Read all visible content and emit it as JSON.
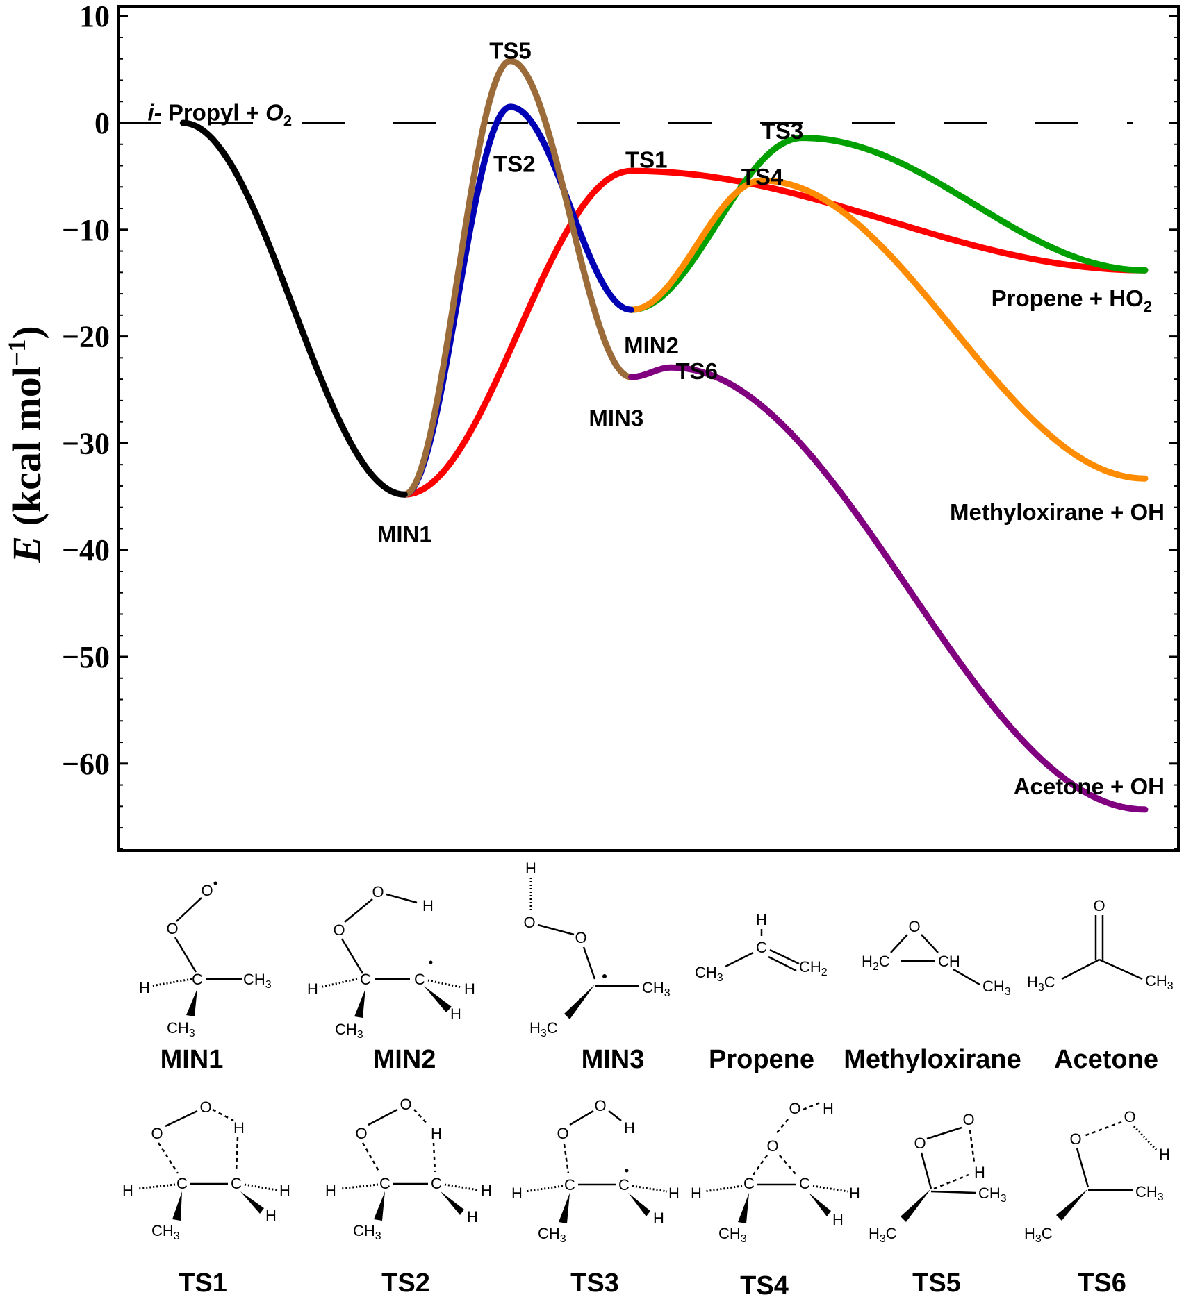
{
  "chart_data": {
    "type": "line",
    "ylabel_E": "E",
    "ylabel_rest": " (kcal mol",
    "ylabel_sup": "−1",
    "ylabel_close": ")",
    "yticks": [
      "10",
      "0",
      "−10",
      "−20",
      "−30",
      "−40",
      "−50",
      "−60"
    ],
    "ytick_values": [
      10,
      0,
      -10,
      -20,
      -30,
      -40,
      -50,
      -60
    ],
    "ylim": [
      -68,
      11
    ],
    "xlim": [
      0,
      10
    ],
    "reference_line": {
      "y": 0,
      "style": "dashed"
    },
    "series": [
      {
        "color": "#000000",
        "points": [
          [
            0.45,
            0
          ],
          [
            2.65,
            -34.8
          ]
        ]
      },
      {
        "color": "#ff0000",
        "points": [
          [
            2.65,
            -34.8
          ],
          [
            4.9,
            -4.5
          ],
          [
            10.0,
            -13.8
          ]
        ]
      },
      {
        "color": "#0000b4",
        "points": [
          [
            2.65,
            -34.8
          ],
          [
            3.7,
            1.5
          ],
          [
            4.9,
            -17.5
          ]
        ]
      },
      {
        "color": "#00a000",
        "points": [
          [
            4.9,
            -17.5
          ],
          [
            6.6,
            -1.4
          ],
          [
            10.0,
            -13.8
          ]
        ]
      },
      {
        "color": "#ff8c00",
        "points": [
          [
            4.9,
            -17.5
          ],
          [
            6.2,
            -5.4
          ],
          [
            10.0,
            -33.3
          ]
        ]
      },
      {
        "color": "#9b6b3a",
        "points": [
          [
            2.65,
            -34.8
          ],
          [
            3.7,
            5.8
          ],
          [
            4.9,
            -23.8
          ]
        ]
      },
      {
        "color": "#800080",
        "points": [
          [
            4.9,
            -23.8
          ],
          [
            5.3,
            -22.9
          ],
          [
            10.0,
            -64.3
          ]
        ]
      }
    ],
    "annotations": [
      {
        "text": "Propyl + ",
        "prefix": "i-",
        "o2": "O",
        "o2_sub": "2",
        "x": 0.1,
        "y": 1.0
      },
      {
        "text": "TS5",
        "x": 3.7,
        "y": 6.8
      },
      {
        "text": "TS2",
        "x": 3.74,
        "y": -3.8
      },
      {
        "text": "TS1",
        "x": 5.05,
        "y": -3.4
      },
      {
        "text": "TS3",
        "x": 6.4,
        "y": -0.7
      },
      {
        "text": "TS4",
        "x": 6.2,
        "y": -5.0
      },
      {
        "text": "MIN1",
        "x": 2.65,
        "y": -38.5
      },
      {
        "text": "MIN2",
        "x": 5.1,
        "y": -20.8
      },
      {
        "text": "MIN3",
        "x": 4.75,
        "y": -27.6
      },
      {
        "text": "TS6",
        "x": 5.55,
        "y": -23.2
      }
    ],
    "end_labels": [
      {
        "text": "Propene + HO",
        "sub": "2",
        "y": -16.4
      },
      {
        "text": "Methyloxirane + OH",
        "y": -36.4
      },
      {
        "text": "Acetone + OH",
        "y": -62.1
      }
    ]
  },
  "structures": {
    "labels_row1": [
      "MIN1",
      "MIN2",
      "MIN3",
      "Propene",
      "Methyloxirane",
      "Acetone"
    ],
    "labels_row2": [
      "TS1",
      "TS2",
      "TS3",
      "TS4",
      "TS5",
      "TS6"
    ]
  }
}
